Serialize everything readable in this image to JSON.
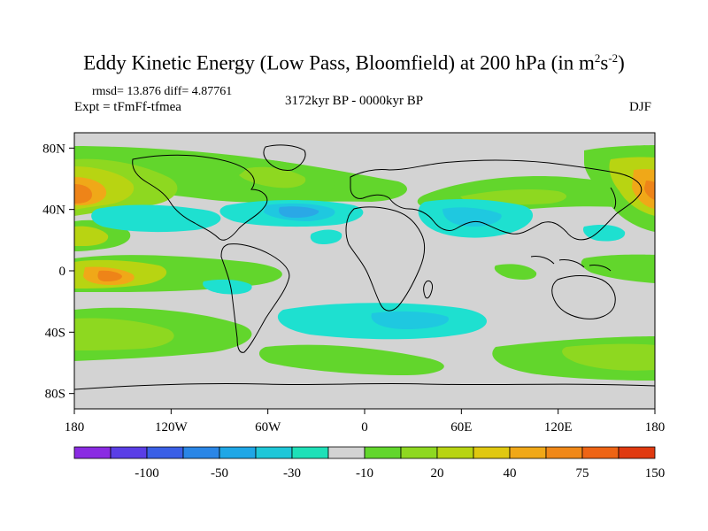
{
  "title": {
    "main": "Eddy Kinetic Energy (Low Pass, Bloomfield) at 200 hPa (in m",
    "sup1": "2",
    "mid": "s",
    "sup2": "-2",
    "end": ")"
  },
  "stats": "rmsd= 13.876 diff= 4.87761",
  "experiment": "Expt = tFmFf-tfmea",
  "period": "3172kyr BP - 0000kyr BP",
  "season": "DJF",
  "map": {
    "lat_labels": [
      "80N",
      "40N",
      "0",
      "40S",
      "80S"
    ],
    "lat_values": [
      80,
      40,
      0,
      -40,
      -80
    ],
    "lon_labels": [
      "180",
      "120W",
      "60W",
      "0",
      "60E",
      "120E",
      "180"
    ],
    "lon_values": [
      -180,
      -120,
      -60,
      0,
      60,
      120,
      180
    ],
    "background_color": "#d3d3d3"
  },
  "colorbar": {
    "colors": [
      "#8a2be2",
      "#5a3ee6",
      "#3a5fe6",
      "#2a86e6",
      "#1fa7e6",
      "#1ec7d8",
      "#1ee0b8",
      "#d3d3d3",
      "#62d62c",
      "#8ed820",
      "#b8d412",
      "#e0c810",
      "#f0a818",
      "#f08818",
      "#ee6414",
      "#e03a10"
    ],
    "labels": [
      "-100",
      "-50",
      "-30",
      "-10",
      "20",
      "40",
      "75",
      "150"
    ]
  },
  "field_colors": {
    "neg_light": "#1ee0d0",
    "neg_mid": "#1fc8e0",
    "neg_dark": "#2aa8e6",
    "pos1": "#62d62c",
    "pos2": "#8ed820",
    "pos3": "#b8d412",
    "pos4": "#e0c810",
    "pos5": "#f0a818",
    "pos6": "#ee8418"
  }
}
